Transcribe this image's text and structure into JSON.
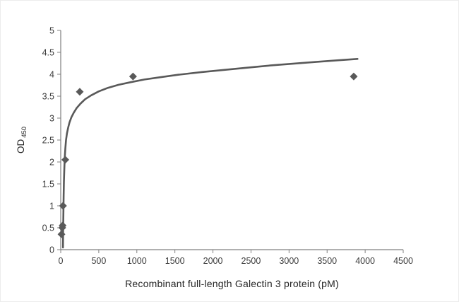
{
  "chart_data": {
    "type": "scatter",
    "title": "",
    "xlabel": "Recombinant full-length Galectin 3 protein (pM)",
    "ylabel": "OD 450",
    "ylabel_main": "OD",
    "ylabel_sub": "450",
    "xlim": [
      0,
      4500
    ],
    "ylim": [
      0,
      5
    ],
    "xticks": [
      0,
      500,
      1000,
      1500,
      2000,
      2500,
      3000,
      3500,
      4000,
      4500
    ],
    "xtick_labels": [
      "0",
      "500",
      "1000",
      "1500",
      "2000",
      "2500",
      "3000",
      "3500",
      "4000",
      "4500"
    ],
    "yticks": [
      0,
      0.5,
      1,
      1.5,
      2,
      2.5,
      3,
      3.5,
      4,
      4.5,
      5
    ],
    "ytick_labels": [
      "0",
      "0.5",
      "1",
      "1.5",
      "2",
      "2.5",
      "3",
      "3.5",
      "4",
      "4.5",
      "5"
    ],
    "grid": false,
    "legend": false,
    "marker": "diamond",
    "marker_color": "#595959",
    "curve_color": "#595959",
    "axis_color": "#808080",
    "points": [
      [
        10,
        0.35
      ],
      [
        20,
        0.5
      ],
      [
        25,
        0.55
      ],
      [
        30,
        1.0
      ],
      [
        60,
        2.05
      ],
      [
        250,
        3.6
      ],
      [
        950,
        3.95
      ],
      [
        3850,
        3.95
      ]
    ],
    "fit_curve": [
      [
        30,
        0.05
      ],
      [
        32,
        0.4
      ],
      [
        35,
        0.85
      ],
      [
        38,
        1.2
      ],
      [
        42,
        1.55
      ],
      [
        47,
        1.85
      ],
      [
        53,
        2.1
      ],
      [
        60,
        2.3
      ],
      [
        70,
        2.5
      ],
      [
        82,
        2.65
      ],
      [
        97,
        2.78
      ],
      [
        115,
        2.9
      ],
      [
        140,
        3.02
      ],
      [
        170,
        3.12
      ],
      [
        210,
        3.23
      ],
      [
        260,
        3.33
      ],
      [
        320,
        3.43
      ],
      [
        400,
        3.52
      ],
      [
        500,
        3.61
      ],
      [
        620,
        3.69
      ],
      [
        760,
        3.76
      ],
      [
        920,
        3.82
      ],
      [
        1100,
        3.88
      ],
      [
        1300,
        3.93
      ],
      [
        1550,
        3.99
      ],
      [
        1850,
        4.05
      ],
      [
        2150,
        4.1
      ],
      [
        2450,
        4.15
      ],
      [
        2750,
        4.2
      ],
      [
        3050,
        4.24
      ],
      [
        3350,
        4.28
      ],
      [
        3650,
        4.32
      ],
      [
        3900,
        4.35
      ]
    ]
  }
}
